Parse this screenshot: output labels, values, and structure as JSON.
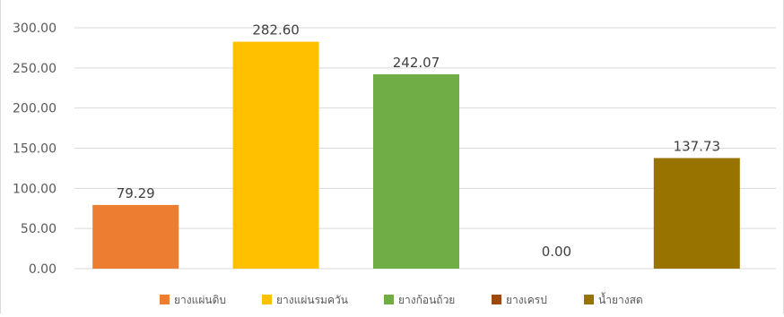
{
  "chart_data": {
    "type": "bar",
    "categories": [
      "ยางแผ่นดิบ",
      "ยางแผ่นรมควัน",
      "ยางก้อนถ้วย",
      "ยางเครป",
      "น้ำยางสด"
    ],
    "values": [
      79.29,
      282.6,
      242.07,
      0.0,
      137.73
    ],
    "value_labels": [
      "79.29",
      "282.60",
      "242.07",
      "0.00",
      "137.73"
    ],
    "colors": [
      "#ed7d31",
      "#ffc000",
      "#70ad47",
      "#9e480e",
      "#997300"
    ],
    "ylim": [
      0,
      300
    ],
    "yticks": [
      "0.00",
      "50.00",
      "100.00",
      "150.00",
      "200.00",
      "250.00",
      "300.00"
    ],
    "grid": true,
    "legend_position": "bottom",
    "title": "",
    "xlabel": "",
    "ylabel": ""
  }
}
